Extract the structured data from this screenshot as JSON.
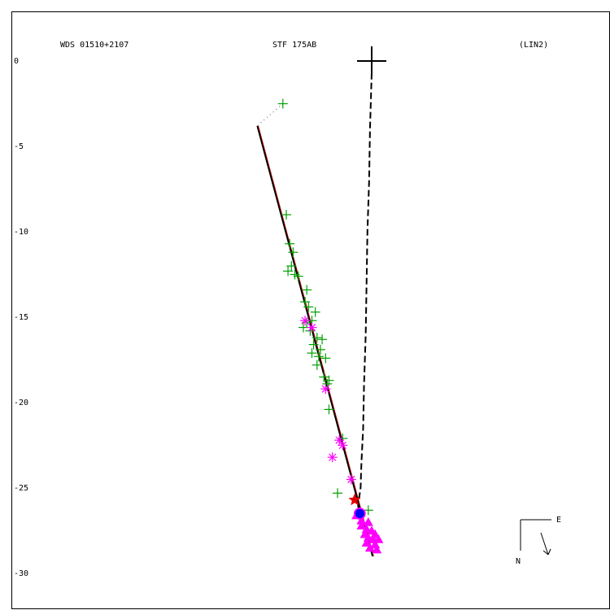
{
  "chart_data": {
    "type": "scatter",
    "header_left": "WDS 01510+2107",
    "header_center": "STF 175AB",
    "header_right": "(LIN2)",
    "y_ticks": [
      "0",
      "-5",
      "-10",
      "-15",
      "-20",
      "-25",
      "-30"
    ],
    "y_tick_values": [
      0,
      -5,
      -10,
      -15,
      -20,
      -25,
      -30
    ],
    "ylim": [
      -30.6,
      3.0
    ],
    "xlim": [
      -9.5,
      24.1
    ],
    "compass": {
      "east_label": "E",
      "north_label": "N"
    },
    "primary": [
      0,
      0
    ],
    "colors": {
      "micrometer": "#00a000",
      "speckle": "#ff00ff",
      "orbit": "#000000",
      "orbit_shadow": "#c00000",
      "star_marker": "#e00000",
      "circle_fill": "#0000ff",
      "circle_ring": "#ff00ff"
    },
    "orbit_line": [
      [
        -6.7,
        -3.8
      ],
      [
        0.05,
        -29.0
      ]
    ],
    "dashed_path": [
      [
        0,
        -0.7
      ],
      [
        -0.1,
        -4.0
      ],
      [
        -0.15,
        -7.0
      ],
      [
        -0.25,
        -10.0
      ],
      [
        -0.3,
        -13.0
      ],
      [
        -0.35,
        -16.0
      ],
      [
        -0.45,
        -19.0
      ],
      [
        -0.5,
        -21.5
      ],
      [
        -0.6,
        -23.5
      ],
      [
        -0.65,
        -25.0
      ],
      [
        -0.8,
        -26.0
      ],
      [
        -0.7,
        -26.6
      ]
    ],
    "micrometer_points": [
      [
        -5.2,
        -2.5
      ],
      [
        -5.0,
        -9.0
      ],
      [
        -4.8,
        -10.7
      ],
      [
        -4.6,
        -11.2
      ],
      [
        -4.7,
        -12.0
      ],
      [
        -4.9,
        -12.3
      ],
      [
        -4.5,
        -12.5
      ],
      [
        -4.3,
        -12.6
      ],
      [
        -3.8,
        -13.4
      ],
      [
        -3.9,
        -14.1
      ],
      [
        -3.7,
        -14.4
      ],
      [
        -3.3,
        -14.7
      ],
      [
        -3.5,
        -15.2
      ],
      [
        -3.8,
        -15.3
      ],
      [
        -4.0,
        -15.6
      ],
      [
        -3.6,
        -15.8
      ],
      [
        -3.2,
        -16.2
      ],
      [
        -2.9,
        -16.3
      ],
      [
        -3.4,
        -16.6
      ],
      [
        -3.0,
        -16.9
      ],
      [
        -3.5,
        -17.1
      ],
      [
        -3.1,
        -17.3
      ],
      [
        -2.7,
        -17.4
      ],
      [
        -3.2,
        -17.8
      ],
      [
        -2.8,
        -18.5
      ],
      [
        -2.5,
        -18.7
      ],
      [
        -2.6,
        -18.9
      ],
      [
        -2.5,
        -20.4
      ],
      [
        -1.7,
        -22.1
      ],
      [
        -2.0,
        -25.3
      ],
      [
        -0.2,
        -26.3
      ]
    ],
    "speckle_points": [
      [
        -3.9,
        -15.2
      ],
      [
        -3.5,
        -15.6
      ],
      [
        -2.7,
        -19.2
      ],
      [
        -1.9,
        -22.2
      ],
      [
        -1.7,
        -22.5
      ],
      [
        -2.3,
        -23.2
      ],
      [
        -1.2,
        -24.5
      ]
    ],
    "star_point": [
      -1.0,
      -25.7
    ],
    "circle_point": [
      -0.7,
      -26.5
    ],
    "triangle_points": [
      [
        -0.9,
        -26.6
      ],
      [
        -0.6,
        -26.9
      ],
      [
        -0.2,
        -27.0
      ],
      [
        -0.6,
        -27.2
      ],
      [
        -0.3,
        -27.4
      ],
      [
        0.0,
        -27.5
      ],
      [
        -0.4,
        -27.7
      ],
      [
        0.2,
        -27.7
      ],
      [
        -0.2,
        -27.9
      ],
      [
        0.1,
        -28.0
      ],
      [
        0.4,
        -28.0
      ],
      [
        -0.3,
        -28.2
      ],
      [
        0.2,
        -28.3
      ],
      [
        -0.1,
        -28.5
      ],
      [
        0.3,
        -28.6
      ]
    ]
  }
}
